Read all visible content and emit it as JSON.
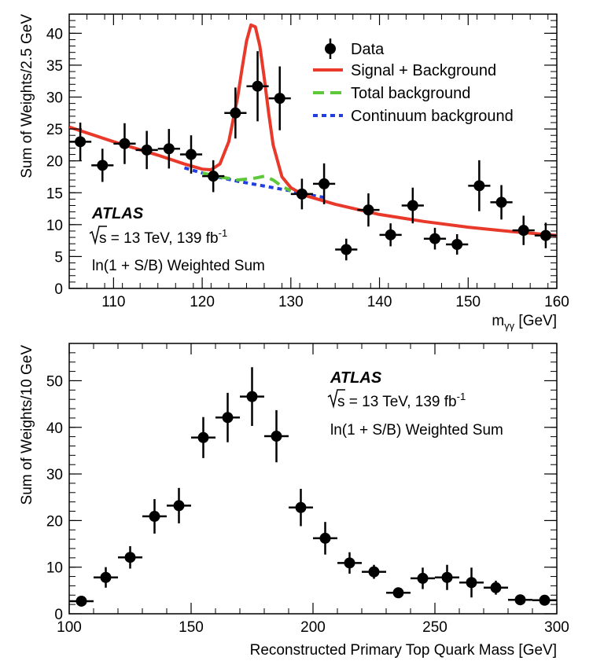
{
  "chart_data": [
    {
      "type": "scatter",
      "xlabel": "m",
      "xlabel_sub": "γγ",
      "xlabel_unit": " [GeV]",
      "ylabel": "Sum of Weights/2.5 GeV",
      "xlim": [
        105,
        160
      ],
      "ylim": [
        0,
        43
      ],
      "x_ticks": [
        110,
        120,
        130,
        140,
        150,
        160
      ],
      "y_ticks": [
        0,
        5,
        10,
        15,
        20,
        25,
        30,
        35,
        40
      ],
      "grid": false,
      "legend_position": "top-right",
      "atlas_label": "ATLAS",
      "energy_prefix": "s = 13 TeV, 139 fb",
      "energy_sup": "-1",
      "weighting_label": "ln(1 + S/B) Weighted Sum",
      "series": [
        {
          "name": "Data",
          "kind": "points",
          "color": "#000000",
          "x": [
            106.25,
            108.75,
            111.25,
            113.75,
            116.25,
            118.75,
            121.25,
            123.75,
            126.25,
            128.75,
            131.25,
            133.75,
            136.25,
            138.75,
            141.25,
            143.75,
            146.25,
            148.75,
            151.25,
            153.75,
            156.25,
            158.75
          ],
          "y": [
            23.0,
            19.3,
            22.7,
            21.7,
            21.9,
            21.0,
            17.6,
            27.5,
            31.7,
            29.8,
            14.8,
            16.4,
            6.1,
            12.3,
            8.4,
            13.0,
            7.8,
            6.9,
            16.1,
            13.5,
            9.1,
            8.3
          ],
          "yerr": [
            3.0,
            2.6,
            3.2,
            3.0,
            3.1,
            3.0,
            2.5,
            4.0,
            5.5,
            5.0,
            2.4,
            3.2,
            1.7,
            2.6,
            1.8,
            2.8,
            1.7,
            1.6,
            4.0,
            2.7,
            2.3,
            2.0
          ],
          "xerr": 1.25
        },
        {
          "name": "Signal + Background",
          "kind": "line",
          "color": "#e8392a",
          "x": [
            105,
            110,
            115,
            118,
            120,
            121,
            122,
            123,
            124,
            124.5,
            125,
            125.5,
            126,
            126.5,
            127,
            127.5,
            128,
            129,
            130,
            131,
            132,
            135,
            140,
            145,
            150,
            155,
            160
          ],
          "y": [
            25.3,
            23.0,
            20.9,
            19.5,
            18.7,
            18.6,
            19.5,
            23.0,
            30.0,
            34.5,
            38.8,
            41.3,
            41.0,
            38.0,
            33.0,
            27.5,
            22.5,
            17.5,
            15.8,
            15.0,
            14.4,
            13.2,
            11.6,
            10.5,
            9.6,
            8.9,
            8.3
          ]
        },
        {
          "name": "Total background",
          "kind": "line",
          "color": "#5cc83a",
          "x": [
            120,
            122,
            124,
            126,
            127,
            128,
            129,
            130
          ],
          "y": [
            18.1,
            17.5,
            17.0,
            17.3,
            17.6,
            17.0,
            16.0,
            15.3
          ]
        },
        {
          "name": "Continuum background",
          "kind": "line",
          "color": "#1f3fe0",
          "x": [
            118,
            120,
            122,
            124,
            126,
            128,
            130,
            132,
            134
          ],
          "y": [
            18.9,
            18.1,
            17.4,
            16.8,
            16.3,
            15.8,
            15.3,
            14.7,
            14.2
          ]
        }
      ]
    },
    {
      "type": "scatter",
      "xlabel": "Reconstructed Primary Top Quark Mass [GeV]",
      "ylabel": "Sum of Weights/10 GeV",
      "xlim": [
        100,
        300
      ],
      "ylim": [
        0,
        58
      ],
      "x_ticks": [
        100,
        150,
        200,
        250,
        300
      ],
      "y_ticks": [
        0,
        10,
        20,
        30,
        40,
        50
      ],
      "grid": false,
      "atlas_label": "ATLAS",
      "energy_prefix": "s = 13 TeV, 139 fb",
      "energy_sup": "-1",
      "weighting_label": "ln(1 + S/B) Weighted Sum",
      "series": [
        {
          "kind": "points",
          "color": "#000000",
          "x": [
            105,
            115,
            125,
            135,
            145,
            155,
            165,
            175,
            185,
            195,
            205,
            215,
            225,
            235,
            245,
            255,
            265,
            275,
            285,
            295
          ],
          "y": [
            2.7,
            7.8,
            12.1,
            20.9,
            23.2,
            37.8,
            42.1,
            46.6,
            38.1,
            22.8,
            16.2,
            10.9,
            9.0,
            4.5,
            7.6,
            7.8,
            6.7,
            5.6,
            3.0,
            2.9
          ],
          "yerr": [
            0.8,
            2.2,
            2.4,
            3.7,
            3.8,
            4.4,
            5.3,
            6.3,
            5.6,
            4.0,
            3.5,
            2.3,
            1.5,
            0.8,
            2.3,
            2.7,
            3.2,
            1.5,
            0.8,
            0.8
          ],
          "xerr": 5
        }
      ]
    }
  ]
}
